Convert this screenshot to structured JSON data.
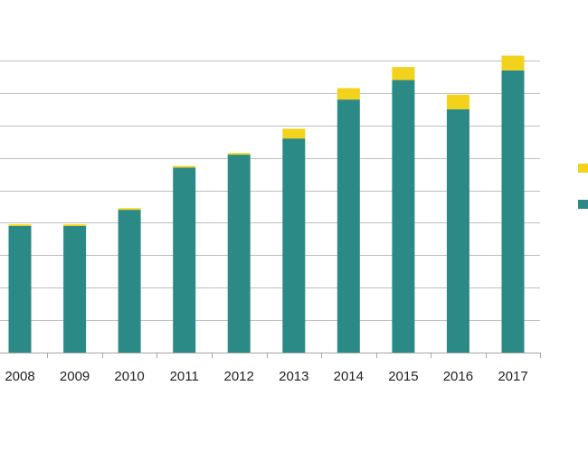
{
  "chart_data": {
    "type": "bar",
    "stacked": true,
    "title": "",
    "xlabel": "",
    "ylabel": "",
    "categories": [
      "2008",
      "2009",
      "2010",
      "2011",
      "2012",
      "2013",
      "2014",
      "2015",
      "2016",
      "2017"
    ],
    "series": [
      {
        "values": [
          3.9,
          3.9,
          4.4,
          5.7,
          6.1,
          6.6,
          7.8,
          8.4,
          7.5,
          8.7
        ],
        "color": "#2b8a86"
      },
      {
        "values": [
          0.05,
          0.05,
          0.05,
          0.05,
          0.05,
          0.3,
          0.35,
          0.4,
          0.45,
          0.45
        ],
        "color": "#f2d21b"
      }
    ],
    "ylim": [
      0,
      9
    ],
    "y_grid_step": 1,
    "grid": true,
    "legend_position": "right",
    "colors": {
      "gridline": "#bfbfbf",
      "axis": "#a6a6a6",
      "tick_text": "#222222"
    }
  }
}
